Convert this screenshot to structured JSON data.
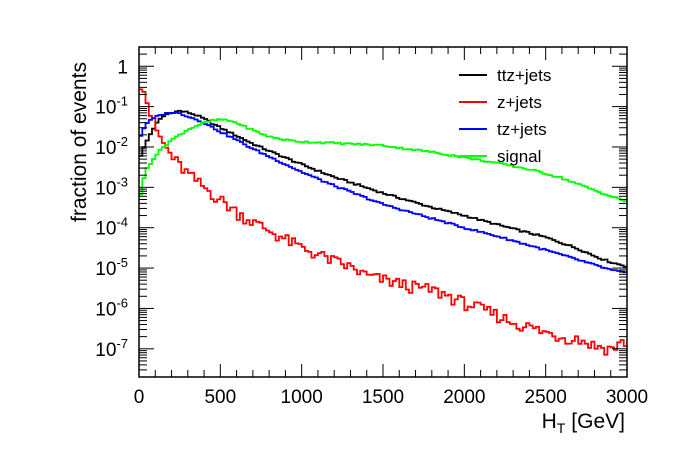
{
  "chart_data": {
    "type": "line",
    "style": "step-histogram",
    "title": "",
    "xlabel": "H_T [GeV]",
    "xlabel_main": "H",
    "xlabel_sub": "T",
    "xlabel_unit": "[GeV]",
    "ylabel": "fraction of events",
    "xlim": [
      0,
      3000
    ],
    "ylim": [
      2e-08,
      3
    ],
    "yscale": "log",
    "x_ticks": [
      "0",
      "500",
      "1000",
      "1500",
      "2000",
      "2500",
      "3000"
    ],
    "y_tick_labels": [
      {
        "value": 1,
        "text": "1"
      },
      {
        "value": 0.1,
        "base": "10",
        "exp": "-1"
      },
      {
        "value": 0.01,
        "base": "10",
        "exp": "-2"
      },
      {
        "value": 0.001,
        "base": "10",
        "exp": "-3"
      },
      {
        "value": 0.0001,
        "base": "10",
        "exp": "-4"
      },
      {
        "value": 1e-05,
        "base": "10",
        "exp": "-5"
      },
      {
        "value": 1e-06,
        "base": "10",
        "exp": "-6"
      },
      {
        "value": 1e-07,
        "base": "10",
        "exp": "-7"
      }
    ],
    "legend_position": "top-right",
    "series": [
      {
        "name": "ttz+jets",
        "color": "#000000",
        "points": [
          [
            0,
            0.005
          ],
          [
            40,
            0.012
          ],
          [
            80,
            0.025
          ],
          [
            120,
            0.045
          ],
          [
            160,
            0.062
          ],
          [
            200,
            0.072
          ],
          [
            250,
            0.078
          ],
          [
            300,
            0.072
          ],
          [
            350,
            0.062
          ],
          [
            400,
            0.05
          ],
          [
            500,
            0.03
          ],
          [
            600,
            0.019
          ],
          [
            700,
            0.012
          ],
          [
            800,
            0.008
          ],
          [
            1000,
            0.0037
          ],
          [
            1200,
            0.0018
          ],
          [
            1500,
            0.00072
          ],
          [
            1800,
            0.00032
          ],
          [
            2000,
            0.0002
          ],
          [
            2200,
            0.00012
          ],
          [
            2500,
            5.8e-05
          ],
          [
            2700,
            3e-05
          ],
          [
            2800,
            2e-05
          ],
          [
            2900,
            1.4e-05
          ],
          [
            3000,
            1.1e-05
          ]
        ]
      },
      {
        "name": "z+jets",
        "color": "#ff0000",
        "points": [
          [
            0,
            0.22
          ],
          [
            10,
            0.4
          ],
          [
            20,
            0.55
          ],
          [
            40,
            0.2
          ],
          [
            60,
            0.09
          ],
          [
            80,
            0.05
          ],
          [
            100,
            0.03
          ],
          [
            150,
            0.012
          ],
          [
            200,
            0.006
          ],
          [
            250,
            0.0035
          ],
          [
            300,
            0.0022
          ],
          [
            400,
            0.001
          ],
          [
            500,
            0.0005
          ],
          [
            600,
            0.00025
          ],
          [
            700,
            0.00014
          ],
          [
            800,
            8.5e-05
          ],
          [
            1000,
            3.2e-05
          ],
          [
            1200,
            1.5e-05
          ],
          [
            1300,
            1.05e-05
          ],
          [
            1400,
            6.5e-06
          ],
          [
            1500,
            5.2e-06
          ],
          [
            1700,
            3.4e-06
          ],
          [
            1800,
            2.9e-06
          ],
          [
            1900,
            2.1e-06
          ],
          [
            2000,
            1.4e-06
          ],
          [
            2100,
            1e-06
          ],
          [
            2200,
            7e-07
          ],
          [
            2300,
            4.5e-07
          ],
          [
            2400,
            3.5e-07
          ],
          [
            2500,
            2.5e-07
          ],
          [
            2600,
            2e-07
          ],
          [
            2700,
            1.8e-07
          ],
          [
            2800,
            1.2e-07
          ],
          [
            2900,
            1e-07
          ],
          [
            3000,
            1.6e-07
          ]
        ]
      },
      {
        "name": "tz+jets",
        "color": "#0000ff",
        "points": [
          [
            0,
            0.015
          ],
          [
            20,
            0.025
          ],
          [
            50,
            0.04
          ],
          [
            100,
            0.055
          ],
          [
            150,
            0.065
          ],
          [
            200,
            0.072
          ],
          [
            250,
            0.068
          ],
          [
            300,
            0.058
          ],
          [
            400,
            0.04
          ],
          [
            500,
            0.024
          ],
          [
            600,
            0.015
          ],
          [
            700,
            0.009
          ],
          [
            800,
            0.0058
          ],
          [
            1000,
            0.0024
          ],
          [
            1200,
            0.0011
          ],
          [
            1500,
            0.00038
          ],
          [
            1800,
            0.00017
          ],
          [
            2000,
            0.0001
          ],
          [
            2200,
            6.2e-05
          ],
          [
            2500,
            2.8e-05
          ],
          [
            2700,
            1.6e-05
          ],
          [
            2900,
            9e-06
          ],
          [
            3000,
            7.5e-06
          ]
        ]
      },
      {
        "name": "signal",
        "color": "#00ff00",
        "points": [
          [
            0,
            0.0004
          ],
          [
            20,
            0.0012
          ],
          [
            50,
            0.003
          ],
          [
            100,
            0.006
          ],
          [
            150,
            0.01
          ],
          [
            200,
            0.015
          ],
          [
            250,
            0.02
          ],
          [
            300,
            0.027
          ],
          [
            350,
            0.033
          ],
          [
            400,
            0.04
          ],
          [
            450,
            0.045
          ],
          [
            500,
            0.048
          ],
          [
            550,
            0.045
          ],
          [
            600,
            0.04
          ],
          [
            650,
            0.032
          ],
          [
            700,
            0.026
          ],
          [
            800,
            0.018
          ],
          [
            900,
            0.015
          ],
          [
            1000,
            0.0135
          ],
          [
            1100,
            0.013
          ],
          [
            1200,
            0.0125
          ],
          [
            1300,
            0.012
          ],
          [
            1400,
            0.0115
          ],
          [
            1500,
            0.011
          ],
          [
            1600,
            0.0095
          ],
          [
            1700,
            0.0085
          ],
          [
            1800,
            0.0075
          ],
          [
            2000,
            0.0055
          ],
          [
            2200,
            0.004
          ],
          [
            2400,
            0.0028
          ],
          [
            2500,
            0.0022
          ],
          [
            2600,
            0.0017
          ],
          [
            2700,
            0.0012
          ],
          [
            2800,
            0.00085
          ],
          [
            2900,
            0.0006
          ],
          [
            3000,
            0.00045
          ]
        ]
      }
    ]
  }
}
